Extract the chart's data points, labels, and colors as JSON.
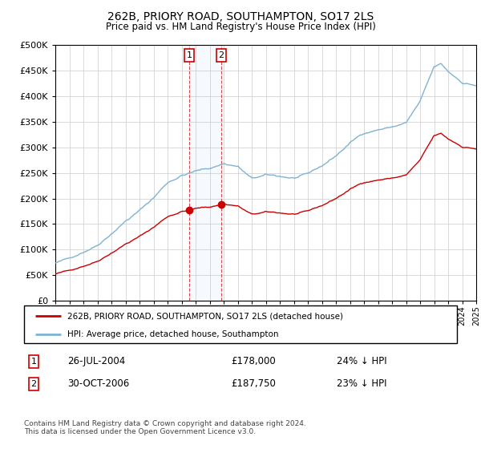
{
  "title": "262B, PRIORY ROAD, SOUTHAMPTON, SO17 2LS",
  "subtitle": "Price paid vs. HM Land Registry's House Price Index (HPI)",
  "legend_line1": "262B, PRIORY ROAD, SOUTHAMPTON, SO17 2LS (detached house)",
  "legend_line2": "HPI: Average price, detached house, Southampton",
  "transaction1_date": "26-JUL-2004",
  "transaction1_price": 178000,
  "transaction1_pct": "24% ↓ HPI",
  "transaction1_label": "1",
  "transaction1_year": 2004.54,
  "transaction2_date": "30-OCT-2006",
  "transaction2_price": 187750,
  "transaction2_pct": "23% ↓ HPI",
  "transaction2_label": "2",
  "transaction2_year": 2006.83,
  "footer": "Contains HM Land Registry data © Crown copyright and database right 2024.\nThis data is licensed under the Open Government Licence v3.0.",
  "hpi_color": "#7fb3d3",
  "property_color": "#cc0000",
  "background_color": "#ffffff",
  "grid_color": "#cccccc",
  "ylim": [
    0,
    500000
  ],
  "xlim_start": 1995,
  "xlim_end": 2025
}
